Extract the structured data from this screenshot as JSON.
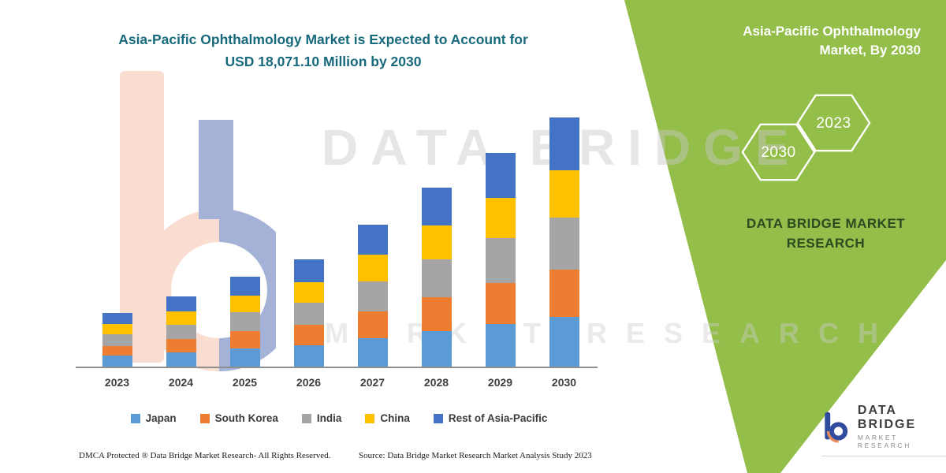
{
  "header": {
    "title_line1": "Asia-Pacific Ophthalmology Market is Expected to Account for",
    "title_line2": "USD 18,071.10 Million by 2030"
  },
  "chart_data": {
    "type": "bar",
    "stacked": true,
    "title": "Asia-Pacific Ophthalmology Market is Expected to Account for USD 18,071.10 Million by 2030",
    "unit": "USD Million",
    "categories": [
      "2023",
      "2024",
      "2025",
      "2026",
      "2027",
      "2028",
      "2029",
      "2030"
    ],
    "series": [
      {
        "name": "Japan",
        "color": "#5B9BD5",
        "values": [
          776,
          1020,
          1308,
          1552,
          2062,
          2594,
          3104,
          3614
        ]
      },
      {
        "name": "South Korea",
        "color": "#ED7D31",
        "values": [
          737,
          969,
          1243,
          1474,
          1959,
          2464,
          2949,
          3434
        ]
      },
      {
        "name": "India",
        "color": "#A5A5A5",
        "values": [
          815,
          1071,
          1373,
          1630,
          2165,
          2724,
          3259,
          3795
        ]
      },
      {
        "name": "China",
        "color": "#FFC000",
        "values": [
          737,
          969,
          1243,
          1474,
          1959,
          2464,
          2949,
          3434
        ]
      },
      {
        "name": "Rest of Asia-Pacific",
        "color": "#4472C4",
        "values": [
          815,
          1071,
          1373,
          1630,
          2165,
          2724,
          3259,
          3794
        ]
      }
    ],
    "ylim": [
      0,
      21000
    ],
    "grid": false,
    "legend_position": "bottom"
  },
  "side_panel": {
    "title": "Asia-Pacific Ophthalmology Market, By 2030",
    "hexagon_labels": [
      "2030",
      "2023"
    ],
    "brand_text": "DATA BRIDGE MARKET RESEARCH",
    "bg_color": "#94BE4A"
  },
  "watermark": {
    "line1": "DATA BRIDGE",
    "line2": "MARKET RESEARCH"
  },
  "footer": {
    "dmca_text": "DMCA Protected ® Data Bridge Market Research-  All Rights Reserved.",
    "source_text": "Source: Data Bridge Market Research  Market Analysis Study 2023",
    "logo_title": "DATA BRIDGE",
    "logo_subtitle": "MARKET RESEARCH"
  }
}
